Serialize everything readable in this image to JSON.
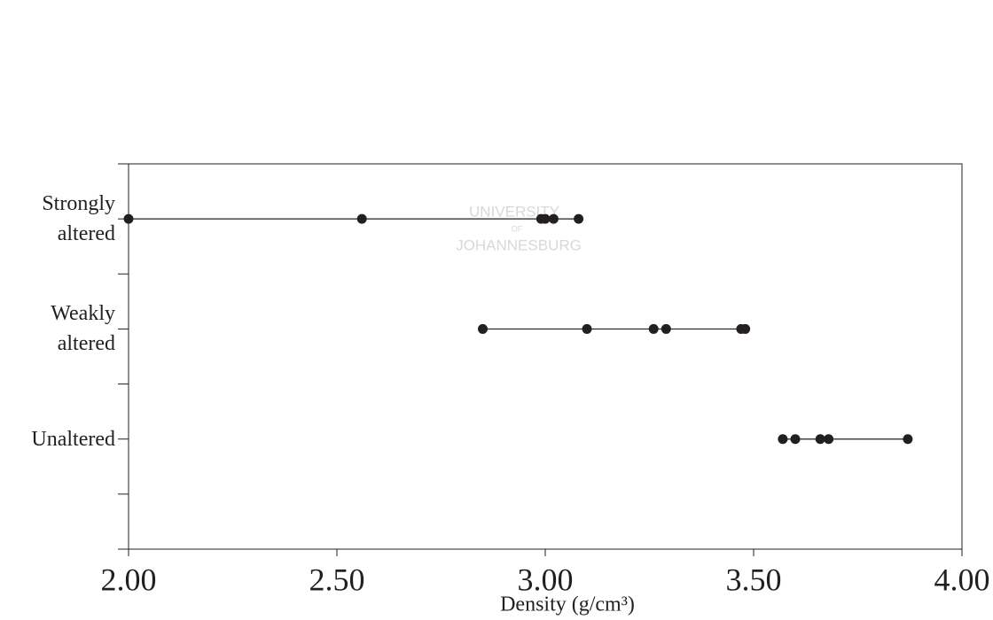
{
  "chart_data": {
    "type": "dot",
    "watermark": [
      "UNIVERSITY",
      "OF",
      "JOHANNESBURG"
    ],
    "categories": [
      "Strongly altered",
      "Weakly altered",
      "Unaltered"
    ],
    "values": [
      [
        2.0,
        2.56,
        2.99,
        3.0,
        3.02,
        3.08
      ],
      [
        2.85,
        3.1,
        3.26,
        3.29,
        3.47,
        3.48
      ],
      [
        3.57,
        3.6,
        3.66,
        3.68,
        3.87
      ]
    ],
    "color": "#231f20",
    "xlim": [
      2,
      4
    ],
    "xticks": [
      {
        "value": 2,
        "label": "2.00"
      },
      {
        "value": 2.5,
        "label": "2.50"
      },
      {
        "value": 3,
        "label": "3.00"
      },
      {
        "value": 3.5,
        "label": "3.50"
      },
      {
        "value": 4,
        "label": "4.00"
      }
    ],
    "xlabel": "Density (g/cm³)"
  }
}
